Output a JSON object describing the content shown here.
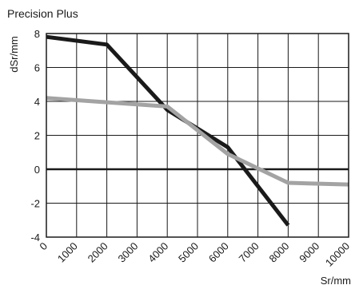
{
  "chart_data": {
    "type": "line",
    "title": "Precision Plus",
    "xlabel": "Sr/mm",
    "ylabel": "dSr/mm",
    "xlim": [
      0,
      10000
    ],
    "ylim": [
      -4,
      8
    ],
    "x_ticks": [
      "0",
      "1000",
      "2000",
      "3000",
      "4000",
      "5000",
      "6000",
      "7000",
      "8000",
      "9000",
      "10000"
    ],
    "y_ticks": [
      "-4",
      "-2",
      "0",
      "2",
      "4",
      "6",
      "8"
    ],
    "grid": true,
    "reference_line_y": 0,
    "series": [
      {
        "color": "#1a1a1a",
        "points": [
          {
            "x": 0,
            "y": 7.8
          },
          {
            "x": 2000,
            "y": 7.35
          },
          {
            "x": 4000,
            "y": 3.5
          },
          {
            "x": 6000,
            "y": 1.3
          },
          {
            "x": 8000,
            "y": -3.3
          }
        ]
      },
      {
        "color": "#a3a3a3",
        "points": [
          {
            "x": 0,
            "y": 4.2
          },
          {
            "x": 2000,
            "y": 3.95
          },
          {
            "x": 4000,
            "y": 3.7
          },
          {
            "x": 6000,
            "y": 0.9
          },
          {
            "x": 8000,
            "y": -0.8
          },
          {
            "x": 10000,
            "y": -0.9
          }
        ]
      }
    ]
  }
}
